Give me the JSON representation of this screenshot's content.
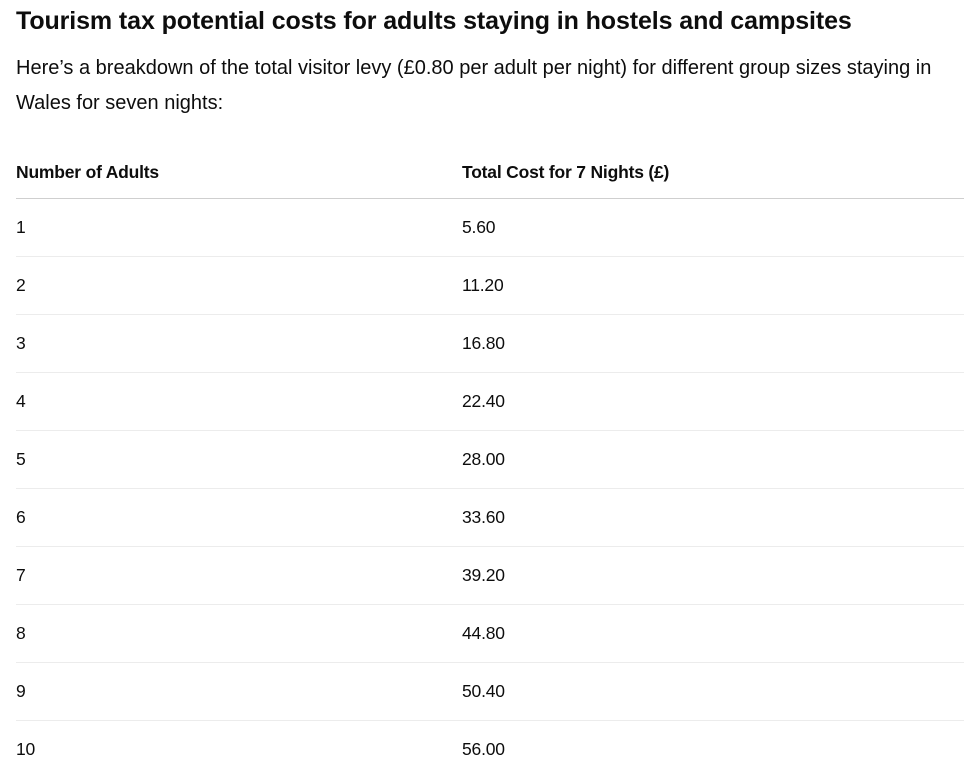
{
  "heading": "Tourism tax potential costs for adults staying in hostels and campsites",
  "intro": "Here’s a breakdown of the total visitor levy (£0.80 per adult per night) for different group sizes staying in Wales for seven nights:",
  "table": {
    "headers": [
      "Number of Adults",
      "Total Cost for 7 Nights (£)"
    ],
    "rows": [
      [
        "1",
        "5.60"
      ],
      [
        "2",
        "11.20"
      ],
      [
        "3",
        "16.80"
      ],
      [
        "4",
        "22.40"
      ],
      [
        "5",
        "28.00"
      ],
      [
        "6",
        "33.60"
      ],
      [
        "7",
        "39.20"
      ],
      [
        "8",
        "44.80"
      ],
      [
        "9",
        "50.40"
      ],
      [
        "10",
        "56.00"
      ]
    ]
  }
}
